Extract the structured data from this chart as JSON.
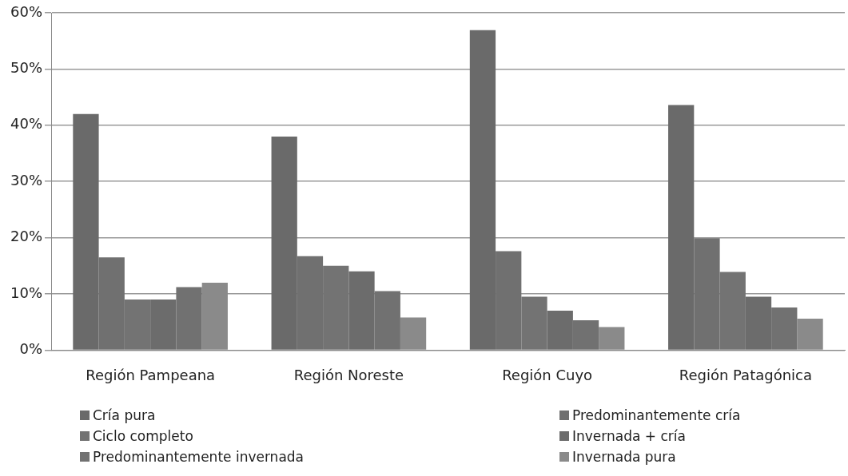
{
  "chart_data": {
    "type": "bar",
    "categories": [
      "Región Pampeana",
      "Región Noreste",
      "Región Cuyo",
      "Región Patagónica"
    ],
    "series": [
      {
        "name": "Cría pura",
        "color": "#6a6a6a",
        "values": [
          42,
          38,
          56.9,
          43.6
        ]
      },
      {
        "name": "Predominantemente cría",
        "color": "#707070",
        "values": [
          16.5,
          16.7,
          17.6,
          19.9
        ]
      },
      {
        "name": "Ciclo completo",
        "color": "#737373",
        "values": [
          9,
          15,
          9.5,
          13.9
        ]
      },
      {
        "name": "Invernada + cría",
        "color": "#6c6c6c",
        "values": [
          9,
          14,
          7,
          9.5
        ]
      },
      {
        "name": "Predominantemente invernada",
        "color": "#717171",
        "values": [
          11.2,
          10.5,
          5.3,
          7.6
        ]
      },
      {
        "name": "Invernada pura",
        "color": "#8a8a8a",
        "values": [
          12,
          5.8,
          4.1,
          5.6
        ]
      }
    ],
    "ylim": [
      0,
      60
    ],
    "yticks": [
      {
        "value": 0,
        "label": "0%"
      },
      {
        "value": 10,
        "label": "10%"
      },
      {
        "value": 20,
        "label": "20%"
      },
      {
        "value": 30,
        "label": "30%"
      },
      {
        "value": 40,
        "label": "40%"
      },
      {
        "value": 50,
        "label": "50%"
      },
      {
        "value": 60,
        "label": "60%"
      }
    ],
    "grid": "y",
    "legend": "bottom"
  }
}
